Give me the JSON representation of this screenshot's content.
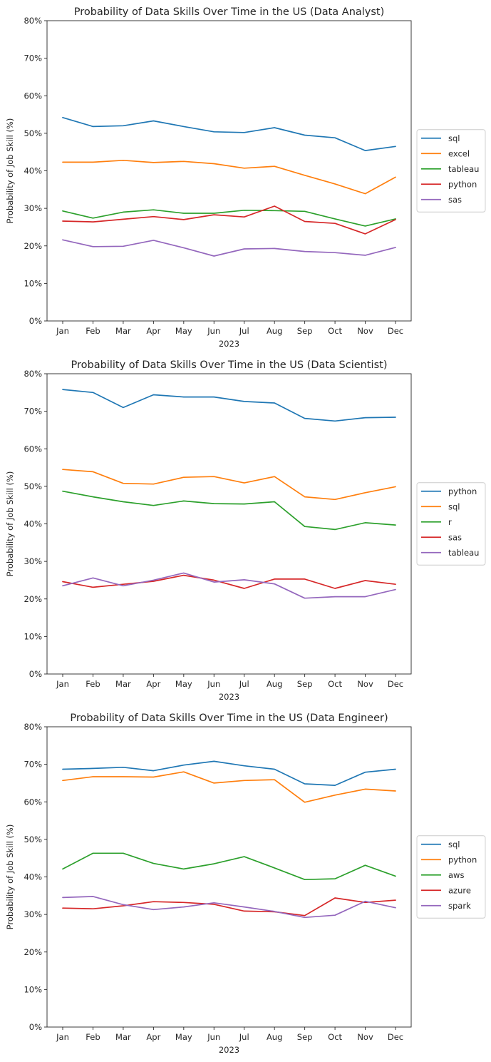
{
  "chart_data": [
    {
      "type": "line",
      "title": "Probability of Data Skills Over Time in the US (Data Analyst)",
      "xlabel": "2023",
      "ylabel": "Probability of Job Skill (%)",
      "categories": [
        "Jan",
        "Feb",
        "Mar",
        "Apr",
        "May",
        "Jun",
        "Jul",
        "Aug",
        "Sep",
        "Oct",
        "Nov",
        "Dec"
      ],
      "ylim": [
        0,
        80
      ],
      "yticks": [
        "0%",
        "10%",
        "20%",
        "30%",
        "40%",
        "50%",
        "60%",
        "70%",
        "80%"
      ],
      "legend_position": "right",
      "grid": false,
      "series": [
        {
          "name": "sql",
          "color": "#1f77b4",
          "values": [
            54.2,
            51.8,
            52.0,
            53.3,
            51.8,
            50.4,
            50.2,
            51.5,
            49.5,
            48.8,
            45.4,
            46.5
          ]
        },
        {
          "name": "excel",
          "color": "#ff7f0e",
          "values": [
            42.3,
            42.3,
            42.8,
            42.2,
            42.5,
            41.9,
            40.7,
            41.2,
            38.8,
            36.5,
            33.9,
            38.3
          ]
        },
        {
          "name": "tableau",
          "color": "#2ca02c",
          "values": [
            29.3,
            27.4,
            29.0,
            29.6,
            28.7,
            28.7,
            29.5,
            29.4,
            29.2,
            27.2,
            25.3,
            27.2
          ]
        },
        {
          "name": "python",
          "color": "#d62728",
          "values": [
            26.6,
            26.4,
            27.1,
            27.8,
            27.0,
            28.3,
            27.7,
            30.6,
            26.5,
            26.0,
            23.2,
            27.0
          ]
        },
        {
          "name": "sas",
          "color": "#9467bd",
          "values": [
            21.6,
            19.8,
            19.9,
            21.5,
            19.5,
            17.3,
            19.2,
            19.3,
            18.5,
            18.2,
            17.5,
            19.6
          ]
        }
      ]
    },
    {
      "type": "line",
      "title": "Probability of Data Skills Over Time in the US (Data Scientist)",
      "xlabel": "2023",
      "ylabel": "Probability of Job Skill (%)",
      "categories": [
        "Jan",
        "Feb",
        "Mar",
        "Apr",
        "May",
        "Jun",
        "Jul",
        "Aug",
        "Sep",
        "Oct",
        "Nov",
        "Dec"
      ],
      "ylim": [
        0,
        80
      ],
      "yticks": [
        "0%",
        "10%",
        "20%",
        "30%",
        "40%",
        "50%",
        "60%",
        "70%",
        "80%"
      ],
      "legend_position": "right",
      "grid": false,
      "series": [
        {
          "name": "python",
          "color": "#1f77b4",
          "values": [
            75.8,
            75.0,
            71.0,
            74.4,
            73.8,
            73.8,
            72.6,
            72.2,
            68.1,
            67.4,
            68.3,
            68.4
          ]
        },
        {
          "name": "sql",
          "color": "#ff7f0e",
          "values": [
            54.5,
            53.9,
            50.8,
            50.6,
            52.4,
            52.6,
            50.9,
            52.6,
            47.2,
            46.5,
            48.3,
            49.9
          ]
        },
        {
          "name": "r",
          "color": "#2ca02c",
          "values": [
            48.7,
            47.2,
            45.9,
            44.9,
            46.1,
            45.4,
            45.3,
            45.9,
            39.3,
            38.5,
            40.3,
            39.7
          ]
        },
        {
          "name": "sas",
          "color": "#d62728",
          "values": [
            24.6,
            23.1,
            23.9,
            24.7,
            26.3,
            25.0,
            22.8,
            25.3,
            25.3,
            22.8,
            24.9,
            23.9
          ]
        },
        {
          "name": "tableau",
          "color": "#9467bd",
          "values": [
            23.5,
            25.6,
            23.5,
            25.0,
            26.9,
            24.5,
            25.1,
            24.0,
            20.2,
            20.6,
            20.6,
            22.5
          ]
        }
      ]
    },
    {
      "type": "line",
      "title": "Probability of Data Skills Over Time in the US (Data Engineer)",
      "xlabel": "2023",
      "ylabel": "Probability of Job Skill (%)",
      "categories": [
        "Jan",
        "Feb",
        "Mar",
        "Apr",
        "May",
        "Jun",
        "Jul",
        "Aug",
        "Sep",
        "Oct",
        "Nov",
        "Dec"
      ],
      "ylim": [
        0,
        80
      ],
      "yticks": [
        "0%",
        "10%",
        "20%",
        "30%",
        "40%",
        "50%",
        "60%",
        "70%",
        "80%"
      ],
      "legend_position": "right",
      "grid": false,
      "series": [
        {
          "name": "sql",
          "color": "#1f77b4",
          "values": [
            68.7,
            68.9,
            69.2,
            68.3,
            69.8,
            70.8,
            69.6,
            68.7,
            64.8,
            64.4,
            67.9,
            68.7
          ]
        },
        {
          "name": "python",
          "color": "#ff7f0e",
          "values": [
            65.7,
            66.7,
            66.7,
            66.6,
            68.0,
            65.0,
            65.7,
            65.9,
            59.9,
            61.8,
            63.4,
            62.9
          ]
        },
        {
          "name": "aws",
          "color": "#2ca02c",
          "values": [
            42.1,
            46.3,
            46.3,
            43.6,
            42.1,
            43.5,
            45.4,
            42.4,
            39.3,
            39.5,
            43.1,
            40.2
          ]
        },
        {
          "name": "azure",
          "color": "#d62728",
          "values": [
            31.7,
            31.5,
            32.3,
            33.4,
            33.2,
            32.7,
            30.9,
            30.7,
            29.7,
            34.4,
            33.2,
            33.8
          ]
        },
        {
          "name": "spark",
          "color": "#9467bd",
          "values": [
            34.5,
            34.8,
            32.6,
            31.3,
            32.0,
            33.1,
            32.0,
            30.8,
            29.2,
            29.8,
            33.5,
            31.8
          ]
        }
      ]
    }
  ]
}
